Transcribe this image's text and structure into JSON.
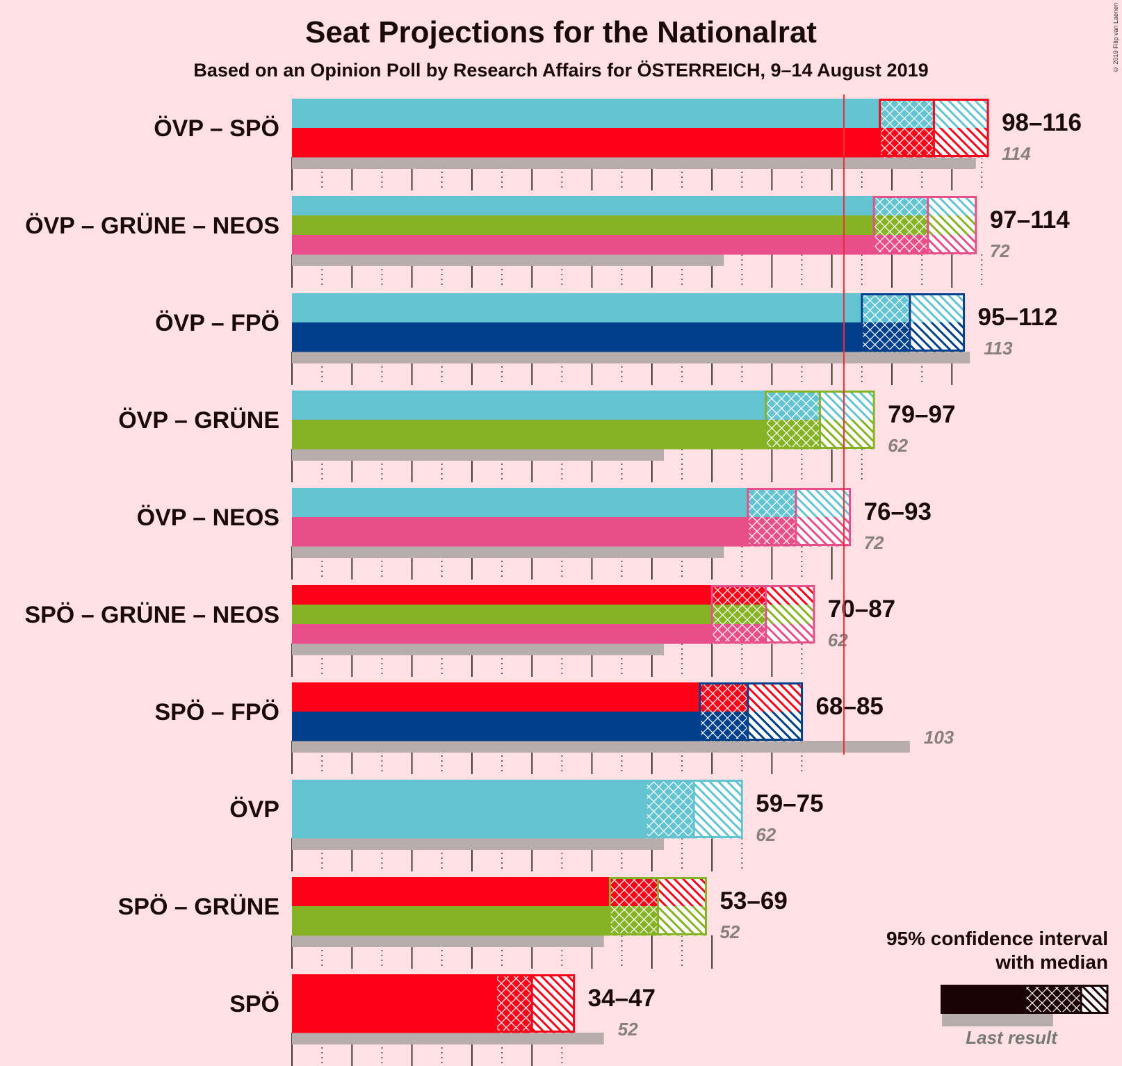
{
  "title": "Seat Projections for the Nationalrat",
  "subtitle": "Based on an Opinion Poll by Research Affairs for ÖSTERREICH, 9–14 August 2019",
  "copyright": "© 2019 Filip van Laenen",
  "legend": {
    "title_line1": "95% confidence interval",
    "title_line2": "with median",
    "last_result": "Last result"
  },
  "colors": {
    "background": "#FFE1E4",
    "majority_line": "#E8303A",
    "last_result_bar": "#B8ADAD",
    "ÖVP": "#63C3D0",
    "SPÖ": "#FF0019",
    "FPÖ": "#00408A",
    "GRÜNE": "#86B325",
    "NEOS": "#E84F8A"
  },
  "chart_data": {
    "type": "bar",
    "orientation": "horizontal",
    "x_unit": "seats",
    "xlim": [
      0,
      120
    ],
    "grid": true,
    "majority_threshold": 92,
    "legend_position": "bottom-right",
    "coalitions": [
      {
        "label": "ÖVP – SPÖ",
        "parties": [
          "ÖVP",
          "SPÖ"
        ],
        "low": 98,
        "median": 107,
        "high": 116,
        "range_label": "98–116",
        "last": 114,
        "last_label": "114"
      },
      {
        "label": "ÖVP – GRÜNE – NEOS",
        "parties": [
          "ÖVP",
          "GRÜNE",
          "NEOS"
        ],
        "low": 97,
        "median": 106,
        "high": 114,
        "range_label": "97–114",
        "last": 72,
        "last_label": "72"
      },
      {
        "label": "ÖVP – FPÖ",
        "parties": [
          "ÖVP",
          "FPÖ"
        ],
        "low": 95,
        "median": 103,
        "high": 112,
        "range_label": "95–112",
        "last": 113,
        "last_label": "113"
      },
      {
        "label": "ÖVP – GRÜNE",
        "parties": [
          "ÖVP",
          "GRÜNE"
        ],
        "low": 79,
        "median": 88,
        "high": 97,
        "range_label": "79–97",
        "last": 62,
        "last_label": "62"
      },
      {
        "label": "ÖVP – NEOS",
        "parties": [
          "ÖVP",
          "NEOS"
        ],
        "low": 76,
        "median": 84,
        "high": 93,
        "range_label": "76–93",
        "last": 72,
        "last_label": "72"
      },
      {
        "label": "SPÖ – GRÜNE – NEOS",
        "parties": [
          "SPÖ",
          "GRÜNE",
          "NEOS"
        ],
        "low": 70,
        "median": 79,
        "high": 87,
        "range_label": "70–87",
        "last": 62,
        "last_label": "62"
      },
      {
        "label": "SPÖ – FPÖ",
        "parties": [
          "SPÖ",
          "FPÖ"
        ],
        "low": 68,
        "median": 76,
        "high": 85,
        "range_label": "68–85",
        "last": 103,
        "last_label": "103"
      },
      {
        "label": "ÖVP",
        "parties": [
          "ÖVP"
        ],
        "low": 59,
        "median": 67,
        "high": 75,
        "range_label": "59–75",
        "last": 62,
        "last_label": "62"
      },
      {
        "label": "SPÖ – GRÜNE",
        "parties": [
          "SPÖ",
          "GRÜNE"
        ],
        "low": 53,
        "median": 61,
        "high": 69,
        "range_label": "53–69",
        "last": 52,
        "last_label": "52"
      },
      {
        "label": "SPÖ",
        "parties": [
          "SPÖ"
        ],
        "low": 34,
        "median": 40,
        "high": 47,
        "range_label": "34–47",
        "last": 52,
        "last_label": "52"
      }
    ]
  }
}
